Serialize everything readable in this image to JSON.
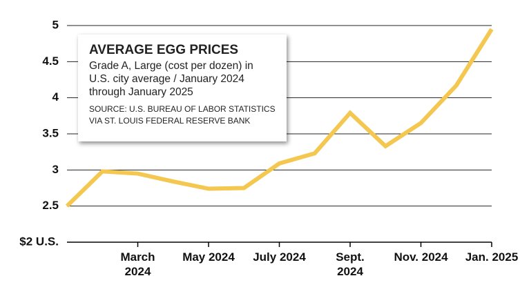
{
  "chart_data": {
    "type": "line",
    "title": "AVERAGE EGG PRICES",
    "subtitle": "Grade A, Large (cost per dozen) in U.S. city average / January 2024 through January 2025",
    "source": "SOURCE: U.S. BUREAU OF LABOR STATISTICS VIA ST. LOUIS FEDERAL RESERVE BANK",
    "categories": [
      null,
      null,
      "March 2024",
      null,
      "May 2024",
      null,
      "July 2024",
      null,
      "Sept. 2024",
      null,
      "Nov. 2024",
      null,
      "Jan. 2025"
    ],
    "values": [
      2.5,
      2.98,
      2.95,
      2.84,
      2.74,
      2.75,
      3.09,
      3.23,
      3.79,
      3.33,
      3.65,
      4.17,
      4.95
    ],
    "color": "#f4c750",
    "ylim": [
      2,
      5
    ],
    "yticks": [
      {
        "value": 2,
        "label": "$2 U.S."
      },
      2.5,
      3,
      3.5,
      4,
      4.5,
      5
    ],
    "grid": true
  }
}
